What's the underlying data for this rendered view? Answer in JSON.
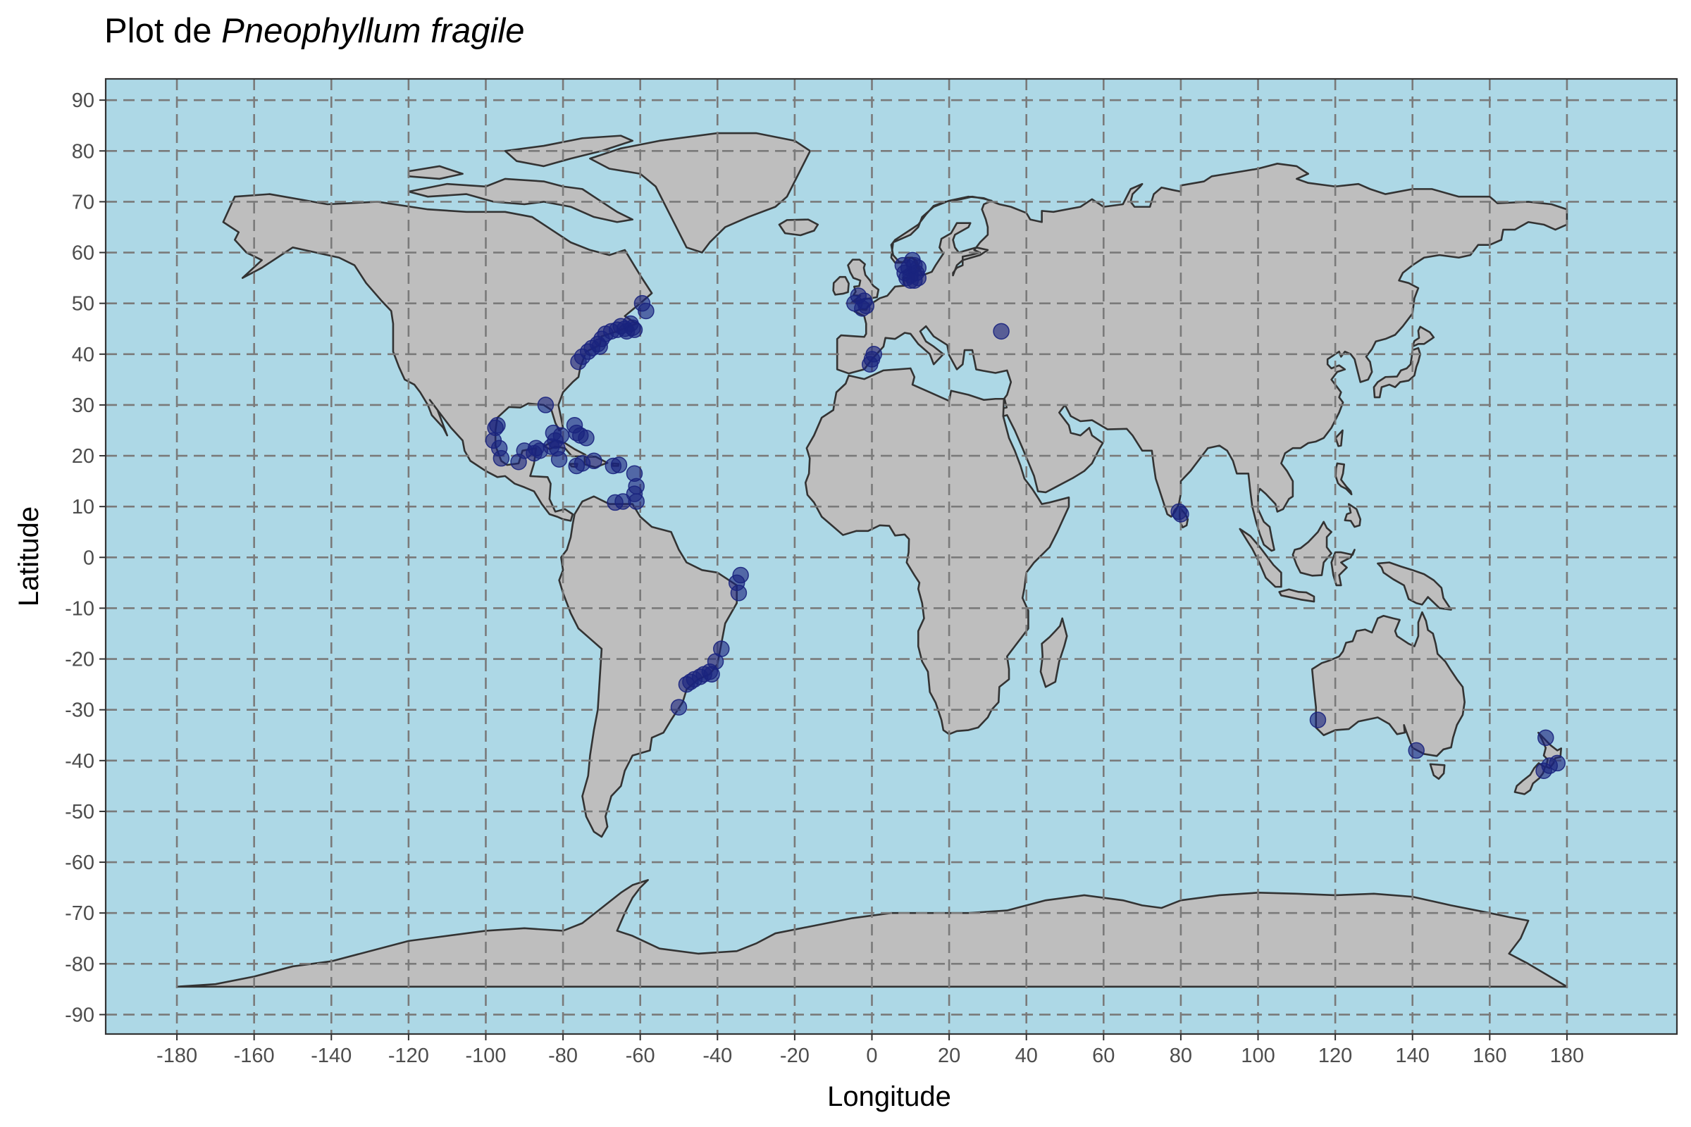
{
  "chart_data": {
    "type": "scatter",
    "title": {
      "prefix": "Plot de ",
      "species": "Pneophyllum fragile"
    },
    "xlabel": "Longitude",
    "ylabel": "Latitude",
    "xlim": [
      -198,
      198
    ],
    "ylim": [
      -94,
      94
    ],
    "x_ticks": [
      -180,
      -160,
      -140,
      -120,
      -100,
      -80,
      -60,
      -40,
      -20,
      0,
      20,
      40,
      60,
      80,
      100,
      120,
      140,
      160,
      180
    ],
    "y_ticks": [
      90,
      80,
      70,
      60,
      50,
      40,
      30,
      20,
      10,
      0,
      -10,
      -20,
      -30,
      -40,
      -50,
      -60,
      -70,
      -80,
      -90
    ],
    "grid": "dashed",
    "legend": "none",
    "colors": {
      "ocean": "#add8e6",
      "land": "#bebebe",
      "border": "#333333",
      "grid": "#7a7a7a",
      "point": "#1a237e"
    },
    "points": [
      {
        "x": -70.5,
        "y": 41.5
      },
      {
        "x": -71.0,
        "y": 42.0
      },
      {
        "x": -70.0,
        "y": 43.0
      },
      {
        "x": -69.0,
        "y": 44.0
      },
      {
        "x": -67.5,
        "y": 44.5
      },
      {
        "x": -66.0,
        "y": 44.8
      },
      {
        "x": -65.0,
        "y": 45.5
      },
      {
        "x": -63.5,
        "y": 44.5
      },
      {
        "x": -62.5,
        "y": 46.0
      },
      {
        "x": -64.0,
        "y": 45.0
      },
      {
        "x": -72.5,
        "y": 41.2
      },
      {
        "x": -73.5,
        "y": 40.5
      },
      {
        "x": -75.0,
        "y": 39.5
      },
      {
        "x": -76.0,
        "y": 38.5
      },
      {
        "x": -58.5,
        "y": 48.5
      },
      {
        "x": -59.5,
        "y": 50.0
      },
      {
        "x": -62.0,
        "y": 45.2
      },
      {
        "x": -61.5,
        "y": 44.8
      },
      {
        "x": -84.5,
        "y": 30.0
      },
      {
        "x": -97.5,
        "y": 25.5
      },
      {
        "x": -97.0,
        "y": 26.0
      },
      {
        "x": -98.0,
        "y": 23.0
      },
      {
        "x": -96.5,
        "y": 21.5
      },
      {
        "x": -96.0,
        "y": 19.5
      },
      {
        "x": -91.5,
        "y": 18.8
      },
      {
        "x": -90.0,
        "y": 21.0
      },
      {
        "x": -87.0,
        "y": 21.5
      },
      {
        "x": -87.5,
        "y": 20.5
      },
      {
        "x": -86.0,
        "y": 21.0
      },
      {
        "x": -82.0,
        "y": 23.0
      },
      {
        "x": -80.5,
        "y": 24.0
      },
      {
        "x": -82.5,
        "y": 24.5
      },
      {
        "x": -81.5,
        "y": 21.5
      },
      {
        "x": -83.0,
        "y": 21.8
      },
      {
        "x": -81.0,
        "y": 19.3
      },
      {
        "x": -77.0,
        "y": 26.0
      },
      {
        "x": -76.5,
        "y": 24.5
      },
      {
        "x": -75.5,
        "y": 24.0
      },
      {
        "x": -74.0,
        "y": 23.5
      },
      {
        "x": -76.5,
        "y": 18.0
      },
      {
        "x": -75.0,
        "y": 18.5
      },
      {
        "x": -72.0,
        "y": 19.0
      },
      {
        "x": -67.0,
        "y": 18.0
      },
      {
        "x": -65.5,
        "y": 18.2
      },
      {
        "x": -61.5,
        "y": 16.5
      },
      {
        "x": -61.0,
        "y": 14.0
      },
      {
        "x": -61.5,
        "y": 12.5
      },
      {
        "x": -61.0,
        "y": 11.0
      },
      {
        "x": -64.5,
        "y": 11.0
      },
      {
        "x": -66.5,
        "y": 10.8
      },
      {
        "x": -35.0,
        "y": -5.0
      },
      {
        "x": -34.5,
        "y": -7.0
      },
      {
        "x": -34.0,
        "y": -3.5
      },
      {
        "x": -39.0,
        "y": -18.0
      },
      {
        "x": -40.5,
        "y": -20.5
      },
      {
        "x": -42.0,
        "y": -22.5
      },
      {
        "x": -43.5,
        "y": -23.0
      },
      {
        "x": -44.5,
        "y": -23.5
      },
      {
        "x": -46.0,
        "y": -24.0
      },
      {
        "x": -47.0,
        "y": -24.5
      },
      {
        "x": -48.0,
        "y": -25.0
      },
      {
        "x": -50.0,
        "y": -29.5
      },
      {
        "x": -41.5,
        "y": -23.0
      },
      {
        "x": -4.5,
        "y": 50.0
      },
      {
        "x": -2.0,
        "y": 50.5
      },
      {
        "x": -3.5,
        "y": 51.5
      },
      {
        "x": -2.5,
        "y": 49.0
      },
      {
        "x": -1.5,
        "y": 49.5
      },
      {
        "x": -0.5,
        "y": 38.0
      },
      {
        "x": 0.0,
        "y": 39.0
      },
      {
        "x": 0.5,
        "y": 40.0
      },
      {
        "x": 8.5,
        "y": 56.0
      },
      {
        "x": 9.5,
        "y": 57.0
      },
      {
        "x": 10.0,
        "y": 55.5
      },
      {
        "x": 11.0,
        "y": 57.5
      },
      {
        "x": 11.5,
        "y": 56.0
      },
      {
        "x": 12.0,
        "y": 55.0
      },
      {
        "x": 10.5,
        "y": 58.5
      },
      {
        "x": 9.0,
        "y": 55.0
      },
      {
        "x": 8.0,
        "y": 57.5
      },
      {
        "x": 12.0,
        "y": 57.0
      },
      {
        "x": 10.0,
        "y": 54.5
      },
      {
        "x": 11.0,
        "y": 54.5
      },
      {
        "x": 33.5,
        "y": 44.5
      },
      {
        "x": 79.5,
        "y": 9.0
      },
      {
        "x": 80.0,
        "y": 8.5
      },
      {
        "x": 115.5,
        "y": -32.0
      },
      {
        "x": 141.0,
        "y": -38.0
      },
      {
        "x": 174.5,
        "y": -35.5
      },
      {
        "x": 175.5,
        "y": -41.0
      },
      {
        "x": 174.0,
        "y": -42.0
      },
      {
        "x": 177.5,
        "y": -40.5
      }
    ],
    "pointRadius": 11
  }
}
